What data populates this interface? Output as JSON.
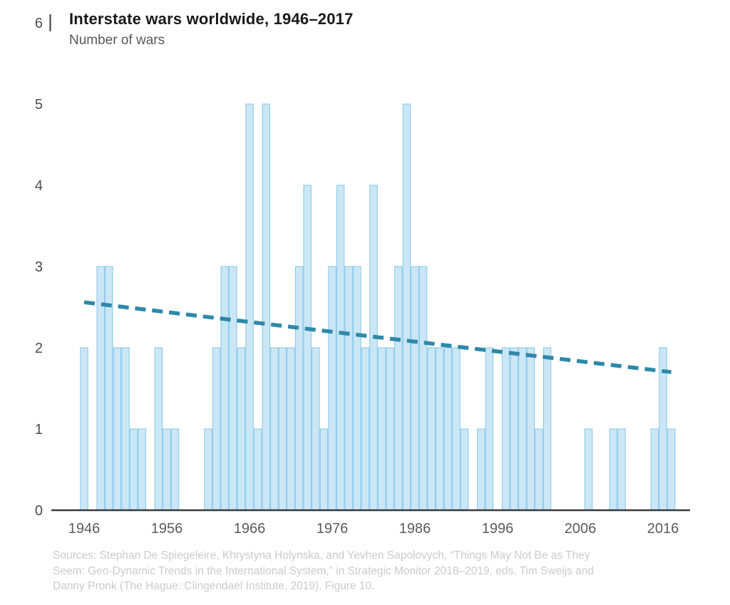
{
  "page": {
    "title": "Interstate wars worldwide, 1946–2017",
    "subtitle": "Number of wars"
  },
  "source": {
    "lines": [
      "Sources: Stephan De Spiegeleire, Khrystyna Holynska, and Yevhen Sapolovych, “Things May Not Be as They",
      "Seem: Geo-Dynamic Trends in the International System,” in Strategic Monitor 2018–2019, eds. Tim Sweijs and",
      "Danny Pronk (The Hague: Clingendael Institute, 2019), Figure 10."
    ]
  },
  "colors": {
    "bar_fill": "#cbe7f6",
    "bar_border": "#85c6ea",
    "trend": "#2e89a9",
    "axis": "#3a3a3c",
    "y_label": "#4c4d4f",
    "x_label": "#5a5b5e",
    "title": "#19191b",
    "subtitle": "#58595b",
    "source_text": "#c9cbce"
  },
  "chart_data": {
    "type": "bar",
    "title": "Interstate wars worldwide, 1946–2017",
    "subtitle": "Number of wars",
    "xlabel": "",
    "ylabel": "Number of wars",
    "ylim": [
      0,
      6
    ],
    "yticks": [
      0,
      1,
      2,
      3,
      4,
      5,
      6
    ],
    "xticks": [
      1946,
      1956,
      1966,
      1976,
      1986,
      1996,
      2006,
      2016
    ],
    "grid": false,
    "legend": "none",
    "years": [
      1946,
      1947,
      1948,
      1949,
      1950,
      1951,
      1952,
      1953,
      1954,
      1955,
      1956,
      1957,
      1958,
      1959,
      1960,
      1961,
      1962,
      1963,
      1964,
      1965,
      1966,
      1967,
      1968,
      1969,
      1970,
      1971,
      1972,
      1973,
      1974,
      1975,
      1976,
      1977,
      1978,
      1979,
      1980,
      1981,
      1982,
      1983,
      1984,
      1985,
      1986,
      1987,
      1988,
      1989,
      1990,
      1991,
      1992,
      1993,
      1994,
      1995,
      1996,
      1997,
      1998,
      1999,
      2000,
      2001,
      2002,
      2003,
      2004,
      2005,
      2006,
      2007,
      2008,
      2009,
      2010,
      2011,
      2012,
      2013,
      2014,
      2015,
      2016,
      2017
    ],
    "values": [
      2,
      0,
      3,
      3,
      2,
      2,
      1,
      1,
      0,
      2,
      1,
      1,
      0,
      0,
      0,
      1,
      2,
      3,
      3,
      2,
      5,
      1,
      5,
      2,
      2,
      2,
      3,
      4,
      2,
      1,
      3,
      4,
      3,
      3,
      2,
      4,
      2,
      2,
      3,
      5,
      3,
      3,
      2,
      2,
      2,
      2,
      1,
      0,
      1,
      2,
      0,
      2,
      2,
      2,
      2,
      1,
      2,
      0,
      0,
      0,
      0,
      1,
      0,
      0,
      1,
      1,
      0,
      0,
      0,
      1,
      2,
      1
    ],
    "trend": {
      "style": "dashed",
      "points": [
        {
          "x": 1946,
          "y": 2.56
        },
        {
          "x": 2017,
          "y": 1.7
        }
      ]
    }
  }
}
